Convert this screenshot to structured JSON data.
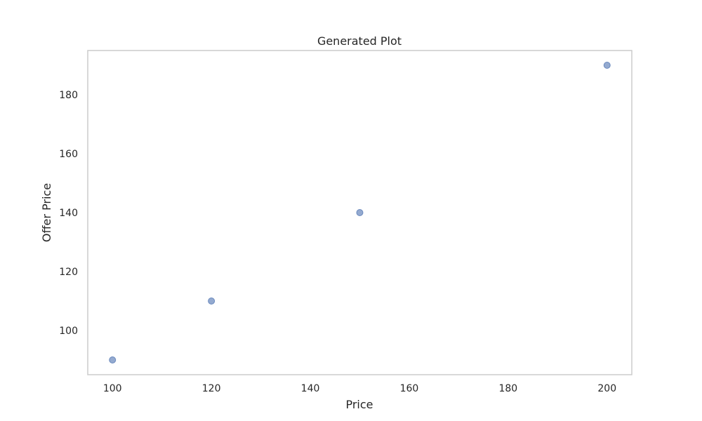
{
  "chart_data": {
    "type": "scatter",
    "title": "Generated Plot",
    "xlabel": "Price",
    "ylabel": "Offer Price",
    "xlim": [
      95,
      205
    ],
    "ylim": [
      85,
      195
    ],
    "xticks": [
      100,
      120,
      140,
      160,
      180,
      200
    ],
    "yticks": [
      100,
      120,
      140,
      160,
      180
    ],
    "grid": false,
    "legend": "none",
    "marker_color": "#4c72b0",
    "x": [
      100,
      120,
      150,
      200
    ],
    "y": [
      90,
      110,
      140,
      190
    ]
  }
}
